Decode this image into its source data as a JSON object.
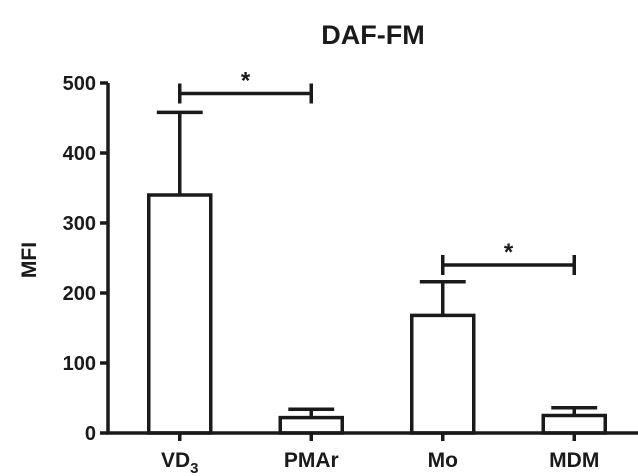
{
  "chart_data": {
    "type": "bar",
    "title": "DAF-FM",
    "ylabel": "MFI",
    "xlabel": "",
    "categories": [
      {
        "main": "VD",
        "sub": "3"
      },
      {
        "main": "PMAr",
        "sub": ""
      },
      {
        "main": "Mo",
        "sub": ""
      },
      {
        "main": "MDM",
        "sub": ""
      }
    ],
    "values": [
      340,
      22,
      168,
      25
    ],
    "errors": [
      118,
      12,
      48,
      11
    ],
    "ylim": [
      0,
      500
    ],
    "yticks": [
      0,
      100,
      200,
      300,
      400,
      500
    ],
    "grid": false,
    "bar_fill": "#ffffff",
    "bar_stroke": "#1a1a1a",
    "significance": [
      {
        "from": 0,
        "to": 1,
        "y": 485,
        "label": "*"
      },
      {
        "from": 2,
        "to": 3,
        "y": 240,
        "label": "*"
      }
    ]
  }
}
